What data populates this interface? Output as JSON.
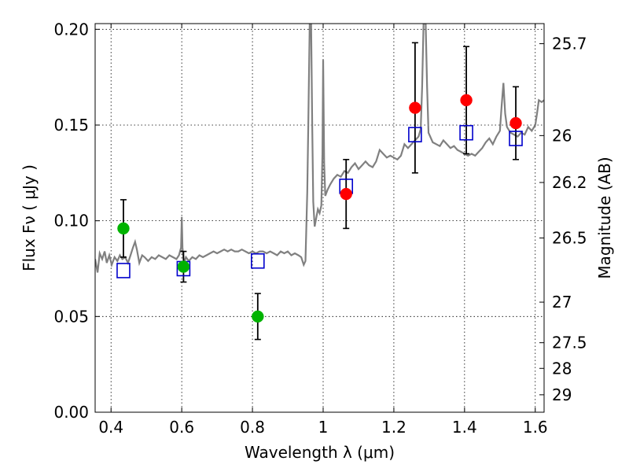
{
  "chart_data": {
    "type": "scatter",
    "title": "",
    "xlabel": "Wavelength  λ (μm)",
    "ylabel": "Flux  Fν  ( μJy )",
    "y2label": "Magnitude (AB)",
    "xlim": [
      0.355,
      1.625
    ],
    "ylim": [
      0.0,
      0.203
    ],
    "grid": true,
    "x_ticks": [
      0.4,
      0.6,
      0.8,
      1.0,
      1.2,
      1.4,
      1.6
    ],
    "x_tick_labels": [
      "0.4",
      "0.6",
      "0.8",
      "1",
      "1.2",
      "1.4",
      "1.6"
    ],
    "y_ticks": [
      0.0,
      0.05,
      0.1,
      0.15,
      0.2
    ],
    "y_tick_labels": [
      "0.00",
      "0.05",
      "0.10",
      "0.15",
      "0.20"
    ],
    "y2_ticks": [
      {
        "label": "25.7",
        "flux": 0.1925
      },
      {
        "label": "26",
        "flux": 0.1445
      },
      {
        "label": "26.2",
        "flux": 0.12
      },
      {
        "label": "26.5",
        "flux": 0.091
      },
      {
        "label": "27",
        "flux": 0.0575
      },
      {
        "label": "27.5",
        "flux": 0.0363
      },
      {
        "label": "28",
        "flux": 0.0229
      },
      {
        "label": "29",
        "flux": 0.0091
      }
    ],
    "series": [
      {
        "kind": "spectrum",
        "color": "#808080",
        "points": [
          [
            0.355,
            0.08
          ],
          [
            0.362,
            0.073
          ],
          [
            0.368,
            0.083
          ],
          [
            0.375,
            0.08
          ],
          [
            0.382,
            0.084
          ],
          [
            0.388,
            0.078
          ],
          [
            0.395,
            0.082
          ],
          [
            0.402,
            0.077
          ],
          [
            0.41,
            0.081
          ],
          [
            0.418,
            0.079
          ],
          [
            0.425,
            0.082
          ],
          [
            0.432,
            0.08
          ],
          [
            0.44,
            0.081
          ],
          [
            0.448,
            0.078
          ],
          [
            0.455,
            0.082
          ],
          [
            0.462,
            0.086
          ],
          [
            0.468,
            0.089
          ],
          [
            0.473,
            0.085
          ],
          [
            0.48,
            0.078
          ],
          [
            0.488,
            0.082
          ],
          [
            0.495,
            0.081
          ],
          [
            0.505,
            0.079
          ],
          [
            0.515,
            0.081
          ],
          [
            0.525,
            0.08
          ],
          [
            0.535,
            0.082
          ],
          [
            0.545,
            0.081
          ],
          [
            0.555,
            0.08
          ],
          [
            0.565,
            0.082
          ],
          [
            0.575,
            0.081
          ],
          [
            0.585,
            0.08
          ],
          [
            0.592,
            0.082
          ],
          [
            0.598,
            0.086
          ],
          [
            0.6,
            0.102
          ],
          [
            0.602,
            0.086
          ],
          [
            0.606,
            0.078
          ],
          [
            0.612,
            0.081
          ],
          [
            0.62,
            0.079
          ],
          [
            0.63,
            0.081
          ],
          [
            0.64,
            0.08
          ],
          [
            0.65,
            0.082
          ],
          [
            0.66,
            0.081
          ],
          [
            0.67,
            0.082
          ],
          [
            0.68,
            0.083
          ],
          [
            0.69,
            0.084
          ],
          [
            0.7,
            0.083
          ],
          [
            0.71,
            0.084
          ],
          [
            0.72,
            0.085
          ],
          [
            0.73,
            0.084
          ],
          [
            0.74,
            0.085
          ],
          [
            0.75,
            0.084
          ],
          [
            0.76,
            0.084
          ],
          [
            0.77,
            0.085
          ],
          [
            0.78,
            0.084
          ],
          [
            0.79,
            0.083
          ],
          [
            0.8,
            0.084
          ],
          [
            0.81,
            0.083
          ],
          [
            0.82,
            0.084
          ],
          [
            0.83,
            0.084
          ],
          [
            0.84,
            0.083
          ],
          [
            0.85,
            0.084
          ],
          [
            0.86,
            0.083
          ],
          [
            0.87,
            0.082
          ],
          [
            0.88,
            0.084
          ],
          [
            0.89,
            0.083
          ],
          [
            0.9,
            0.084
          ],
          [
            0.91,
            0.082
          ],
          [
            0.92,
            0.083
          ],
          [
            0.93,
            0.082
          ],
          [
            0.938,
            0.081
          ],
          [
            0.945,
            0.077
          ],
          [
            0.95,
            0.079
          ],
          [
            0.955,
            0.115
          ],
          [
            0.958,
            0.15
          ],
          [
            0.962,
            0.203
          ],
          [
            0.966,
            0.203
          ],
          [
            0.969,
            0.15
          ],
          [
            0.972,
            0.11
          ],
          [
            0.976,
            0.097
          ],
          [
            0.98,
            0.101
          ],
          [
            0.985,
            0.106
          ],
          [
            0.99,
            0.104
          ],
          [
            0.995,
            0.108
          ],
          [
            0.998,
            0.135
          ],
          [
            1.0,
            0.184
          ],
          [
            1.003,
            0.13
          ],
          [
            1.006,
            0.113
          ],
          [
            1.012,
            0.116
          ],
          [
            1.02,
            0.119
          ],
          [
            1.03,
            0.122
          ],
          [
            1.04,
            0.124
          ],
          [
            1.05,
            0.123
          ],
          [
            1.06,
            0.126
          ],
          [
            1.07,
            0.125
          ],
          [
            1.08,
            0.128
          ],
          [
            1.09,
            0.13
          ],
          [
            1.1,
            0.127
          ],
          [
            1.11,
            0.129
          ],
          [
            1.12,
            0.131
          ],
          [
            1.13,
            0.129
          ],
          [
            1.14,
            0.128
          ],
          [
            1.15,
            0.131
          ],
          [
            1.16,
            0.137
          ],
          [
            1.17,
            0.135
          ],
          [
            1.18,
            0.133
          ],
          [
            1.19,
            0.134
          ],
          [
            1.2,
            0.133
          ],
          [
            1.21,
            0.132
          ],
          [
            1.22,
            0.134
          ],
          [
            1.23,
            0.14
          ],
          [
            1.24,
            0.138
          ],
          [
            1.25,
            0.14
          ],
          [
            1.26,
            0.142
          ],
          [
            1.27,
            0.144
          ],
          [
            1.276,
            0.148
          ],
          [
            1.28,
            0.17
          ],
          [
            1.284,
            0.203
          ],
          [
            1.29,
            0.203
          ],
          [
            1.294,
            0.17
          ],
          [
            1.298,
            0.146
          ],
          [
            1.31,
            0.141
          ],
          [
            1.32,
            0.14
          ],
          [
            1.33,
            0.139
          ],
          [
            1.34,
            0.142
          ],
          [
            1.35,
            0.14
          ],
          [
            1.36,
            0.138
          ],
          [
            1.37,
            0.139
          ],
          [
            1.38,
            0.137
          ],
          [
            1.39,
            0.136
          ],
          [
            1.4,
            0.135
          ],
          [
            1.41,
            0.134
          ],
          [
            1.42,
            0.135
          ],
          [
            1.43,
            0.134
          ],
          [
            1.44,
            0.136
          ],
          [
            1.45,
            0.138
          ],
          [
            1.46,
            0.141
          ],
          [
            1.47,
            0.143
          ],
          [
            1.48,
            0.14
          ],
          [
            1.49,
            0.144
          ],
          [
            1.5,
            0.147
          ],
          [
            1.505,
            0.16
          ],
          [
            1.51,
            0.172
          ],
          [
            1.515,
            0.156
          ],
          [
            1.52,
            0.149
          ],
          [
            1.53,
            0.146
          ],
          [
            1.54,
            0.145
          ],
          [
            1.55,
            0.144
          ],
          [
            1.56,
            0.146
          ],
          [
            1.57,
            0.145
          ],
          [
            1.58,
            0.149
          ],
          [
            1.59,
            0.147
          ],
          [
            1.6,
            0.15
          ],
          [
            1.605,
            0.156
          ],
          [
            1.61,
            0.163
          ],
          [
            1.618,
            0.162
          ],
          [
            1.625,
            0.163
          ]
        ]
      },
      {
        "kind": "model-open-squares",
        "color": "#0000cc",
        "x": [
          0.435,
          0.605,
          0.815,
          1.065,
          1.26,
          1.405,
          1.545
        ],
        "y": [
          0.074,
          0.075,
          0.079,
          0.118,
          0.145,
          0.146,
          0.143
        ]
      },
      {
        "kind": "observed-green",
        "color": "#00b300",
        "x": [
          0.435,
          0.605,
          0.815
        ],
        "y": [
          0.096,
          0.076,
          0.05
        ],
        "yerr": [
          0.015,
          0.008,
          0.012
        ]
      },
      {
        "kind": "observed-red",
        "color": "#ff0000",
        "x": [
          1.065,
          1.26,
          1.405,
          1.545
        ],
        "y": [
          0.114,
          0.159,
          0.163,
          0.151
        ],
        "yerr": [
          0.018,
          0.034,
          0.028,
          0.019
        ]
      }
    ]
  }
}
